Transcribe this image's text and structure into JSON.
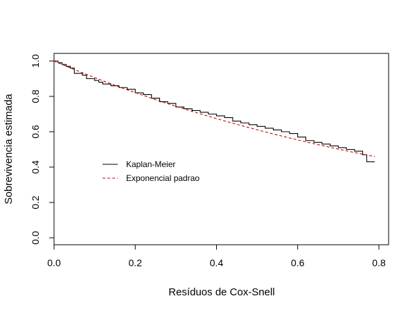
{
  "chart_data": {
    "type": "line",
    "title": "",
    "xlabel": "Resíduos de Cox-Snell",
    "ylabel": "Sobrevivencia estimada",
    "xlim": [
      0.0,
      0.8
    ],
    "ylim": [
      0.0,
      1.0
    ],
    "x_ticks": [
      "0.0",
      "0.2",
      "0.4",
      "0.6",
      "0.8"
    ],
    "y_ticks": [
      "0.0",
      "0.2",
      "0.4",
      "0.6",
      "0.8",
      "1.0"
    ],
    "grid": false,
    "legend_position": "center-left",
    "series": [
      {
        "name": "Kaplan-Meier",
        "style": "step",
        "color": "#000000",
        "dash": "solid",
        "x": [
          0.0,
          0.01,
          0.02,
          0.03,
          0.04,
          0.05,
          0.07,
          0.08,
          0.1,
          0.11,
          0.12,
          0.14,
          0.16,
          0.18,
          0.2,
          0.22,
          0.24,
          0.26,
          0.28,
          0.3,
          0.32,
          0.34,
          0.36,
          0.38,
          0.4,
          0.42,
          0.44,
          0.46,
          0.48,
          0.5,
          0.52,
          0.54,
          0.56,
          0.58,
          0.6,
          0.62,
          0.64,
          0.66,
          0.68,
          0.7,
          0.72,
          0.74,
          0.76,
          0.77,
          0.79
        ],
        "y": [
          1.0,
          0.99,
          0.98,
          0.97,
          0.96,
          0.93,
          0.92,
          0.9,
          0.89,
          0.88,
          0.87,
          0.86,
          0.85,
          0.84,
          0.82,
          0.81,
          0.79,
          0.77,
          0.76,
          0.74,
          0.73,
          0.72,
          0.71,
          0.7,
          0.69,
          0.68,
          0.66,
          0.65,
          0.64,
          0.63,
          0.62,
          0.61,
          0.6,
          0.59,
          0.57,
          0.55,
          0.54,
          0.53,
          0.52,
          0.51,
          0.5,
          0.49,
          0.47,
          0.43,
          0.43
        ]
      },
      {
        "name": "Exponencial padrao",
        "style": "line",
        "color": "#cc0000",
        "dash": "dashed",
        "rate": 0.985,
        "x": [
          0.0,
          0.05,
          0.1,
          0.15,
          0.2,
          0.25,
          0.3,
          0.35,
          0.4,
          0.45,
          0.5,
          0.55,
          0.6,
          0.65,
          0.7,
          0.75,
          0.79
        ],
        "y": [
          1.0,
          0.952,
          0.906,
          0.862,
          0.821,
          0.782,
          0.744,
          0.708,
          0.674,
          0.642,
          0.611,
          0.581,
          0.554,
          0.527,
          0.502,
          0.478,
          0.459
        ]
      }
    ]
  }
}
